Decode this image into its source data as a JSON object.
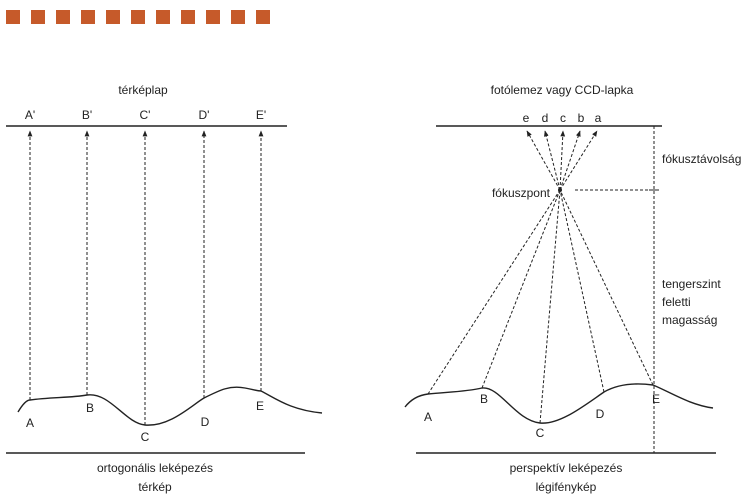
{
  "colors": {
    "accent": "#c65a2a",
    "line": "#222222"
  },
  "decoration": {
    "square_count": 11
  },
  "left_panel": {
    "top_label": "térképlap",
    "top_points": [
      "A'",
      "B'",
      "C'",
      "D'",
      "E'"
    ],
    "ground_points": [
      "A",
      "B",
      "C",
      "D",
      "E"
    ],
    "caption": "ortogonális leképezés",
    "subcaption": "térkép"
  },
  "right_panel": {
    "top_label": "fotólemez vagy CCD-lapka",
    "top_points": [
      "e",
      "d",
      "c",
      "b",
      "a"
    ],
    "focal_label": "fókuszpont",
    "ground_points": [
      "A",
      "B",
      "C",
      "D",
      "E"
    ],
    "focal_distance_label": "fókusztávolság",
    "height_label": [
      "tengerszint",
      "feletti",
      "magasság"
    ],
    "caption": "perspektív leképezés",
    "subcaption": "légifénykép"
  }
}
